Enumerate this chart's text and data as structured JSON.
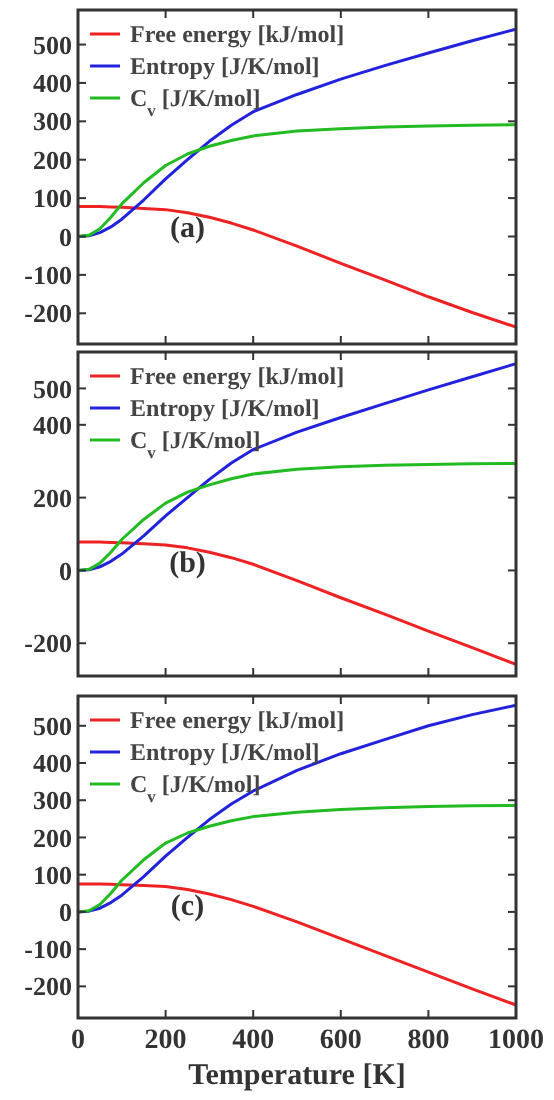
{
  "chart_data": [
    {
      "type": "line",
      "x": [
        0,
        25,
        50,
        75,
        100,
        150,
        200,
        250,
        300,
        350,
        400,
        500,
        600,
        700,
        800,
        900,
        1000
      ],
      "xlim": [
        0,
        1000
      ],
      "xticks": [
        0,
        200,
        400,
        600,
        800,
        1000
      ],
      "ylim": [
        -280,
        590
      ],
      "yticks": [
        -200,
        -100,
        0,
        100,
        200,
        300,
        400,
        500
      ],
      "tick_labels": "y",
      "legend": "top left",
      "annotations": [
        "(a)"
      ],
      "series": [
        {
          "name": "Free energy [kJ/mol]",
          "color": "#ee2222",
          "values": [
            78,
            78,
            78,
            77,
            76,
            73,
            70,
            62,
            50,
            35,
            17,
            -25,
            -70,
            -113,
            -157,
            -198,
            -236
          ]
        },
        {
          "name": "Entropy [J/K/mol]",
          "color": "#2222dd",
          "values": [
            0,
            2,
            10,
            25,
            45,
            95,
            150,
            200,
            248,
            290,
            325,
            370,
            410,
            445,
            478,
            510,
            540
          ]
        },
        {
          "name": "C$_{v}$ [J/K/mol]",
          "color": "#22bb22",
          "values": [
            0,
            3,
            20,
            50,
            85,
            140,
            185,
            215,
            235,
            250,
            262,
            275,
            281,
            285,
            288,
            290,
            291
          ]
        }
      ]
    },
    {
      "type": "line",
      "x": [
        0,
        25,
        50,
        75,
        100,
        150,
        200,
        250,
        300,
        350,
        400,
        500,
        600,
        700,
        800,
        900,
        1000
      ],
      "xlim": [
        0,
        1000
      ],
      "xticks": [
        0,
        200,
        400,
        600,
        800,
        1000
      ],
      "ylim": [
        -290,
        600
      ],
      "yticks": [
        -200,
        0,
        200,
        400,
        500
      ],
      "tick_labels": "y",
      "legend": "top left",
      "annotations": [
        "(b)"
      ],
      "series": [
        {
          "name": "Free energy [kJ/mol]",
          "color": "#ee2222",
          "values": [
            78,
            78,
            78,
            77,
            76,
            73,
            70,
            62,
            50,
            35,
            17,
            -28,
            -75,
            -120,
            -167,
            -212,
            -258
          ]
        },
        {
          "name": "Entropy [J/K/mol]",
          "color": "#2222dd",
          "values": [
            0,
            2,
            10,
            25,
            45,
            95,
            150,
            200,
            250,
            295,
            332,
            380,
            420,
            458,
            496,
            532,
            568
          ]
        },
        {
          "name": "C$_{v}$ [J/K/mol]",
          "color": "#22bb22",
          "values": [
            0,
            3,
            20,
            50,
            85,
            140,
            185,
            215,
            235,
            252,
            265,
            278,
            285,
            289,
            291,
            293,
            294
          ]
        }
      ]
    },
    {
      "type": "line",
      "x": [
        0,
        25,
        50,
        75,
        100,
        150,
        200,
        250,
        300,
        350,
        400,
        500,
        600,
        700,
        800,
        900,
        1000
      ],
      "xlim": [
        0,
        1000
      ],
      "xticks": [
        0,
        200,
        400,
        600,
        800,
        1000
      ],
      "ylim": [
        -285,
        580
      ],
      "yticks": [
        -200,
        -100,
        0,
        100,
        200,
        300,
        400,
        500
      ],
      "xlabel": "Temperature [K]",
      "legend": "top left",
      "annotations": [
        "(c)"
      ],
      "series": [
        {
          "name": "Free energy [kJ/mol]",
          "color": "#ee2222",
          "values": [
            75,
            75,
            75,
            74,
            73,
            71,
            68,
            60,
            48,
            33,
            15,
            -27,
            -72,
            -117,
            -162,
            -207,
            -250
          ]
        },
        {
          "name": "Entropy [J/K/mol]",
          "color": "#2222dd",
          "values": [
            0,
            2,
            10,
            25,
            45,
            95,
            150,
            200,
            248,
            290,
            325,
            380,
            425,
            463,
            500,
            530,
            555
          ]
        },
        {
          "name": "C$_{v}$ [J/K/mol]",
          "color": "#22bb22",
          "values": [
            0,
            3,
            20,
            50,
            85,
            140,
            185,
            212,
            230,
            245,
            256,
            268,
            275,
            280,
            283,
            285,
            286
          ]
        }
      ]
    }
  ]
}
